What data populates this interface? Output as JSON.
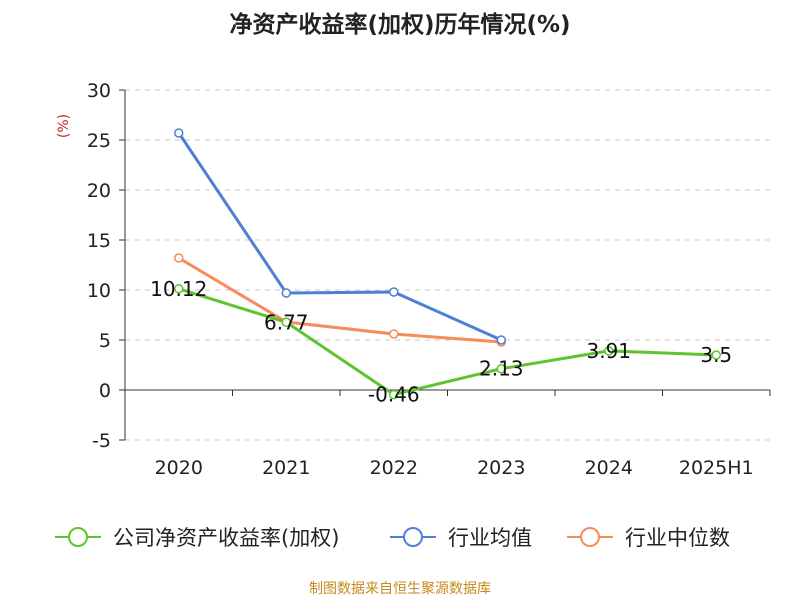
{
  "chart_data": {
    "type": "line",
    "title": "净资产收益率(加权)历年情况(%)",
    "ylabel": "(%)",
    "categories": [
      "2020",
      "2021",
      "2022",
      "2023",
      "2024",
      "2025H1"
    ],
    "ylim": [
      -5,
      30
    ],
    "yticks": [
      -5,
      0,
      5,
      10,
      15,
      20,
      25,
      30
    ],
    "grid": true,
    "legend_position": "bottom",
    "series": [
      {
        "name": "公司净资产收益率(加权)",
        "color": "#5ec42e",
        "values": [
          10.12,
          6.77,
          -0.46,
          2.13,
          3.91,
          3.5
        ],
        "labels": [
          "10.12",
          "6.77",
          "-0.46",
          "2.13",
          "3.91",
          "3.5"
        ]
      },
      {
        "name": "行业均值",
        "color": "#4e7fd8",
        "values": [
          25.7,
          9.7,
          9.8,
          5.0,
          null,
          null
        ]
      },
      {
        "name": "行业中位数",
        "color": "#f58c5a",
        "values": [
          13.2,
          6.8,
          5.6,
          4.8,
          null,
          null
        ]
      }
    ]
  },
  "footer": {
    "source": "制图数据来自恒生聚源数据库"
  }
}
